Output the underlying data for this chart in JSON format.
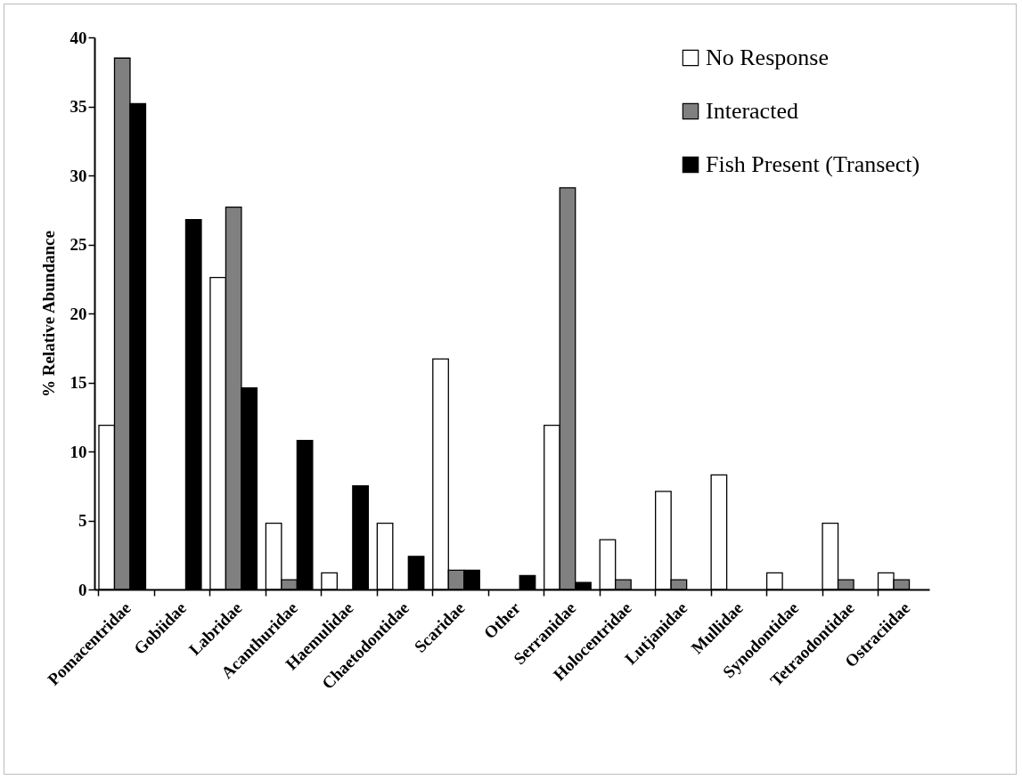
{
  "chart_data": {
    "type": "bar",
    "ylabel": "% Relative Abundance",
    "categories": [
      "Pomacentridae",
      "Gobiidae",
      "Labridae",
      "Acanthuridae",
      "Haemulidae",
      "Chaetodontidae",
      "Scaridae",
      "Other",
      "Serranidae",
      "Holocentridae",
      "Lutjanidae",
      "Mullidae",
      "Synodontidae",
      "Tetraodontidae",
      "Ostraciidae"
    ],
    "series": [
      {
        "name": "No Response",
        "color": "#ffffff",
        "values": [
          11.9,
          null,
          22.6,
          4.8,
          1.2,
          4.8,
          16.7,
          null,
          11.9,
          3.6,
          7.1,
          8.3,
          1.2,
          4.8,
          1.2
        ]
      },
      {
        "name": "Interacted",
        "color": "#808080",
        "values": [
          38.5,
          null,
          27.7,
          0.7,
          null,
          null,
          1.4,
          null,
          29.1,
          0.7,
          0.7,
          null,
          null,
          0.7,
          0.7
        ]
      },
      {
        "name": "Fish Present (Transect)",
        "color": "#000000",
        "values": [
          35.2,
          26.8,
          14.6,
          10.8,
          7.5,
          2.4,
          1.4,
          1.0,
          0.5,
          null,
          null,
          null,
          null,
          null,
          null
        ]
      }
    ],
    "ylim": [
      0,
      40
    ],
    "yticks": [
      0,
      5,
      10,
      15,
      20,
      25,
      30,
      35,
      40
    ],
    "grid": false,
    "legend": "top right"
  }
}
